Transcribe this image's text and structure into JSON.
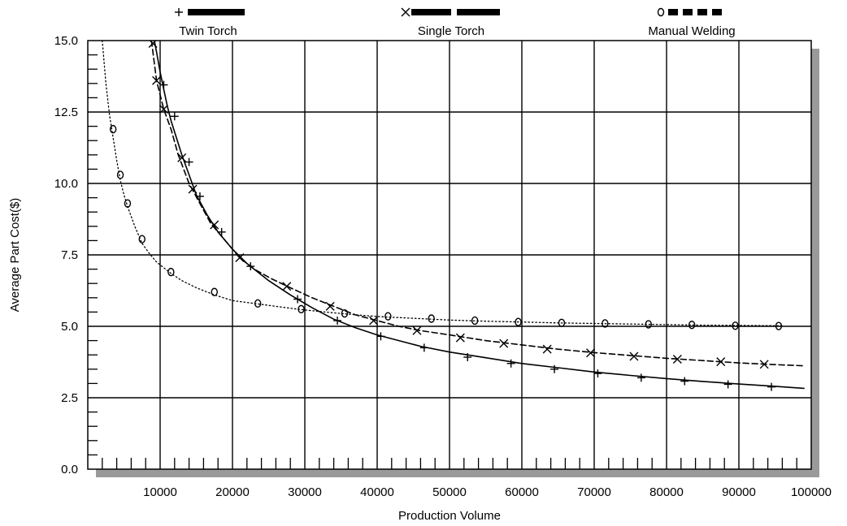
{
  "chart_data": {
    "type": "line",
    "xlabel": "Production Volume",
    "ylabel": "Average Part Cost($)",
    "xlim": [
      0,
      100000
    ],
    "ylim": [
      0,
      15
    ],
    "x_ticks": [
      10000,
      20000,
      30000,
      40000,
      50000,
      60000,
      70000,
      80000,
      90000,
      100000
    ],
    "x_tick_labels": [
      "10000",
      "20000",
      "30000",
      "40000",
      "50000",
      "60000",
      "70000",
      "80000",
      "90000",
      "100000"
    ],
    "y_ticks": [
      0,
      2.5,
      5,
      7.5,
      10,
      12.5,
      15
    ],
    "y_tick_labels": [
      "0.0",
      "2.5",
      "5.0",
      "7.5",
      "10.0",
      "12.5",
      "15.0"
    ],
    "grid": true,
    "legend_position": "top",
    "series": [
      {
        "name": "Twin Torch",
        "marker": "+",
        "line_style": "solid",
        "points": [
          [
            9200,
            15.0
          ],
          [
            9500,
            14.6
          ],
          [
            10000,
            13.9
          ],
          [
            10500,
            13.3
          ],
          [
            11000,
            12.7
          ],
          [
            11500,
            12.2
          ],
          [
            12000,
            11.8
          ],
          [
            13000,
            11.0
          ],
          [
            14000,
            10.3
          ],
          [
            15000,
            9.6
          ],
          [
            16500,
            8.9
          ],
          [
            18000,
            8.3
          ],
          [
            20000,
            7.7
          ],
          [
            22000,
            7.2
          ],
          [
            25000,
            6.6
          ],
          [
            28000,
            6.1
          ],
          [
            31000,
            5.65
          ],
          [
            34000,
            5.25
          ],
          [
            37000,
            4.95
          ],
          [
            40000,
            4.7
          ],
          [
            43000,
            4.5
          ],
          [
            46000,
            4.3
          ],
          [
            50000,
            4.1
          ],
          [
            55000,
            3.9
          ],
          [
            60000,
            3.7
          ],
          [
            65000,
            3.55
          ],
          [
            70000,
            3.4
          ],
          [
            75000,
            3.28
          ],
          [
            80000,
            3.17
          ],
          [
            85000,
            3.07
          ],
          [
            90000,
            2.98
          ],
          [
            95000,
            2.9
          ],
          [
            99000,
            2.83
          ]
        ],
        "marker_points": [
          [
            10500,
            13.45
          ],
          [
            12000,
            12.35
          ],
          [
            14000,
            10.75
          ],
          [
            15500,
            9.55
          ],
          [
            18500,
            8.3
          ],
          [
            22500,
            7.1
          ],
          [
            29000,
            5.95
          ],
          [
            34500,
            5.2
          ],
          [
            40500,
            4.65
          ],
          [
            46500,
            4.25
          ],
          [
            52500,
            3.92
          ],
          [
            58500,
            3.7
          ],
          [
            64500,
            3.5
          ],
          [
            70500,
            3.35
          ],
          [
            76500,
            3.2
          ],
          [
            82500,
            3.08
          ],
          [
            88500,
            2.97
          ],
          [
            94500,
            2.88
          ]
        ]
      },
      {
        "name": "Single Torch",
        "marker": "x",
        "line_style": "dashed",
        "points": [
          [
            8800,
            15.0
          ],
          [
            9500,
            13.6
          ],
          [
            10500,
            12.6
          ],
          [
            11500,
            11.9
          ],
          [
            12500,
            11.0
          ],
          [
            14000,
            10.0
          ],
          [
            15500,
            9.3
          ],
          [
            17000,
            8.6
          ],
          [
            19000,
            8.0
          ],
          [
            21000,
            7.4
          ],
          [
            23000,
            7.0
          ],
          [
            25500,
            6.65
          ],
          [
            28000,
            6.35
          ],
          [
            31000,
            6.0
          ],
          [
            34000,
            5.7
          ],
          [
            37000,
            5.4
          ],
          [
            40000,
            5.2
          ],
          [
            43000,
            5.0
          ],
          [
            46000,
            4.85
          ],
          [
            50000,
            4.7
          ],
          [
            55000,
            4.5
          ],
          [
            60000,
            4.35
          ],
          [
            65000,
            4.2
          ],
          [
            70000,
            4.08
          ],
          [
            75000,
            3.98
          ],
          [
            80000,
            3.88
          ],
          [
            85000,
            3.8
          ],
          [
            90000,
            3.72
          ],
          [
            95000,
            3.66
          ],
          [
            99000,
            3.62
          ]
        ],
        "marker_points": [
          [
            9000,
            14.9
          ],
          [
            9500,
            13.6
          ],
          [
            10500,
            12.6
          ],
          [
            13000,
            10.9
          ],
          [
            14500,
            9.8
          ],
          [
            17500,
            8.55
          ],
          [
            21000,
            7.4
          ],
          [
            27500,
            6.4
          ],
          [
            33500,
            5.7
          ],
          [
            39500,
            5.2
          ],
          [
            45500,
            4.85
          ],
          [
            51500,
            4.6
          ],
          [
            57500,
            4.4
          ],
          [
            63500,
            4.2
          ],
          [
            69500,
            4.07
          ],
          [
            75500,
            3.95
          ],
          [
            81500,
            3.85
          ],
          [
            87500,
            3.76
          ],
          [
            93500,
            3.67
          ]
        ]
      },
      {
        "name": "Manual Welding",
        "marker": "o",
        "line_style": "dotted",
        "points": [
          [
            2000,
            15.0
          ],
          [
            2500,
            13.5
          ],
          [
            3000,
            12.4
          ],
          [
            3500,
            11.6
          ],
          [
            4000,
            10.8
          ],
          [
            4500,
            10.1
          ],
          [
            5000,
            9.6
          ],
          [
            5500,
            9.2
          ],
          [
            6500,
            8.5
          ],
          [
            7500,
            7.9
          ],
          [
            8500,
            7.55
          ],
          [
            9500,
            7.25
          ],
          [
            10500,
            7.05
          ],
          [
            11500,
            6.85
          ],
          [
            13000,
            6.6
          ],
          [
            15000,
            6.35
          ],
          [
            17500,
            6.1
          ],
          [
            20000,
            5.9
          ],
          [
            23000,
            5.8
          ],
          [
            26000,
            5.7
          ],
          [
            29000,
            5.6
          ],
          [
            32000,
            5.52
          ],
          [
            35000,
            5.45
          ],
          [
            38000,
            5.38
          ],
          [
            41000,
            5.33
          ],
          [
            45000,
            5.28
          ],
          [
            50000,
            5.22
          ],
          [
            55000,
            5.18
          ],
          [
            60000,
            5.15
          ],
          [
            65000,
            5.12
          ],
          [
            70000,
            5.1
          ],
          [
            75000,
            5.08
          ],
          [
            80000,
            5.06
          ],
          [
            85000,
            5.04
          ],
          [
            90000,
            5.03
          ],
          [
            96000,
            5.02
          ]
        ],
        "marker_points": [
          [
            3500,
            11.9
          ],
          [
            4500,
            10.3
          ],
          [
            5500,
            9.3
          ],
          [
            7500,
            8.05
          ],
          [
            11500,
            6.9
          ],
          [
            17500,
            6.2
          ],
          [
            23500,
            5.8
          ],
          [
            29500,
            5.6
          ],
          [
            35500,
            5.45
          ],
          [
            41500,
            5.35
          ],
          [
            47500,
            5.27
          ],
          [
            53500,
            5.2
          ],
          [
            59500,
            5.15
          ],
          [
            65500,
            5.12
          ],
          [
            71500,
            5.1
          ],
          [
            77500,
            5.07
          ],
          [
            83500,
            5.05
          ],
          [
            89500,
            5.02
          ],
          [
            95500,
            5.01
          ]
        ]
      }
    ]
  }
}
